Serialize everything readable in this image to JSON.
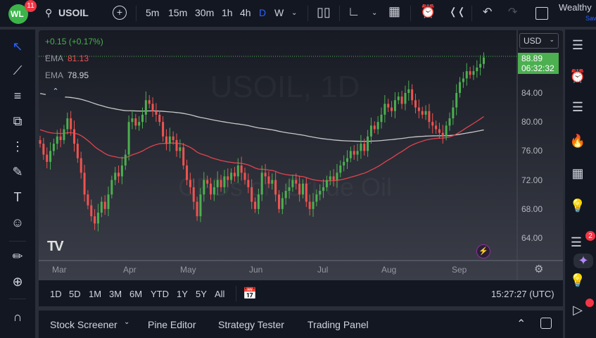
{
  "header": {
    "logo_text": "WL",
    "notifications": "11",
    "symbol": "USOIL",
    "intervals": [
      "5m",
      "15m",
      "30m",
      "1h",
      "4h",
      "D",
      "W"
    ],
    "active_interval": "D",
    "account": "Wealthy",
    "account_sub": "Save"
  },
  "legend": {
    "change": "+0.15 (+0.17%)",
    "ema1_label": "EMA",
    "ema1_value": "81.13",
    "ema2_label": "EMA",
    "ema2_value": "78.95"
  },
  "watermark": {
    "symbol": "USOIL, 1D",
    "description": "CFDs on Crude Oil"
  },
  "price_axis": {
    "currency": "USD",
    "last_price": "88.89",
    "countdown": "06:32:32",
    "ticks": [
      "84.00",
      "80.00",
      "76.00",
      "72.00",
      "68.00",
      "64.00"
    ]
  },
  "time_axis": {
    "ticks": [
      "Mar",
      "Apr",
      "May",
      "Jun",
      "Jul",
      "Aug",
      "Sep"
    ]
  },
  "range_bar": {
    "ranges": [
      "1D",
      "5D",
      "1M",
      "3M",
      "6M",
      "YTD",
      "1Y",
      "5Y",
      "All"
    ],
    "clock": "15:27:27 (UTC)"
  },
  "bottom_panel": {
    "tabs": [
      "Stock Screener",
      "Pine Editor",
      "Strategy Tester",
      "Trading Panel"
    ]
  },
  "right_bar": {
    "chat_badge": "2"
  },
  "colors": {
    "up": "#26a69a",
    "down": "#ef5350",
    "ema_fast": "#e0434f",
    "ema_slow": "#c8c8c8",
    "accent": "#2962ff",
    "last_price": "#4caf50"
  },
  "chart_data": {
    "type": "candlestick",
    "ylim": [
      61,
      91
    ],
    "closes": [
      77,
      75.5,
      74.5,
      76,
      77,
      78,
      77.5,
      79,
      80.5,
      79,
      77,
      75,
      73,
      70,
      68.5,
      67,
      66,
      67.5,
      69,
      68,
      70,
      72,
      73,
      72.5,
      74,
      75.5,
      80,
      80.5,
      79.5,
      80,
      81,
      83,
      82.5,
      81.5,
      81,
      80,
      78,
      77,
      78,
      77.5,
      76,
      76.5,
      74,
      72,
      71,
      69,
      67,
      70,
      72,
      71.5,
      70,
      71,
      72,
      71,
      72.5,
      72,
      73,
      72.5,
      74,
      73,
      72,
      71,
      69,
      68,
      70,
      73,
      72.5,
      71.5,
      72,
      70,
      68,
      69.5,
      70.5,
      71,
      72,
      71.5,
      70,
      71.5,
      69,
      68,
      69,
      70,
      70.5,
      71,
      72,
      72.5,
      72,
      73,
      74,
      74.5,
      75,
      76,
      75.5,
      76,
      77,
      76,
      78,
      79.5,
      79,
      80,
      81,
      82.5,
      82,
      81.5,
      83,
      83.5,
      82.5,
      84,
      84.5,
      83,
      82,
      81.5,
      81,
      81.5,
      80,
      79.5,
      79,
      78.5,
      78,
      79.5,
      80.5,
      82,
      84,
      85.5,
      86,
      87,
      86.5,
      87,
      87.5,
      88,
      88.89
    ],
    "ema_series": [
      "EMA 81.13",
      "EMA 78.95"
    ]
  }
}
